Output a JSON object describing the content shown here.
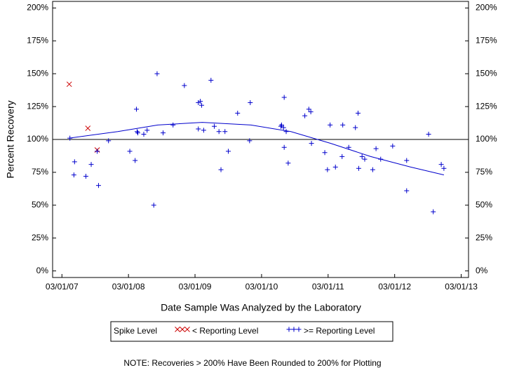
{
  "chart_data": {
    "type": "scatter",
    "xlabel": "Date Sample Was Analyzed by the Laboratory",
    "ylabel": "Percent Recovery",
    "note": "NOTE: Recoveries > 200% Have Been Rounded to 200% for Plotting",
    "legend_title": "Spike Level",
    "xlim": [
      2007.02,
      2013.27
    ],
    "ylim": [
      -5,
      205
    ],
    "xticks": [
      {
        "value": 2007.16,
        "label": "03/01/07"
      },
      {
        "value": 2008.16,
        "label": "03/01/08"
      },
      {
        "value": 2009.16,
        "label": "03/01/09"
      },
      {
        "value": 2010.16,
        "label": "03/01/10"
      },
      {
        "value": 2011.16,
        "label": "03/01/11"
      },
      {
        "value": 2012.16,
        "label": "03/01/12"
      },
      {
        "value": 2013.16,
        "label": "03/01/13"
      }
    ],
    "yticks": [
      {
        "value": 0,
        "label": "0%"
      },
      {
        "value": 25,
        "label": "25%"
      },
      {
        "value": 50,
        "label": "50%"
      },
      {
        "value": 75,
        "label": "75%"
      },
      {
        "value": 100,
        "label": "100%"
      },
      {
        "value": 125,
        "label": "125%"
      },
      {
        "value": 150,
        "label": "150%"
      },
      {
        "value": 175,
        "label": "175%"
      },
      {
        "value": 200,
        "label": "200%"
      }
    ],
    "reference_line": 100,
    "series": [
      {
        "name": "< Reporting Level",
        "color": "#cc0000",
        "marker": "x",
        "x": [
          2007.27,
          2007.55,
          2007.69
        ],
        "values": [
          142,
          108.5,
          92
        ]
      },
      {
        "name": ">= Reporting Level",
        "color": "#0000cc",
        "marker": "+",
        "x": [
          2007.28,
          2007.35,
          2007.34,
          2007.52,
          2007.6,
          2007.69,
          2007.71,
          2007.86,
          2008.18,
          2008.26,
          2008.29,
          2008.28,
          2008.3,
          2008.39,
          2008.44,
          2008.54,
          2008.59,
          2008.68,
          2008.83,
          2009.0,
          2009.21,
          2009.24,
          2009.26,
          2009.21,
          2009.29,
          2009.4,
          2009.45,
          2009.52,
          2009.55,
          2009.61,
          2009.66,
          2009.8,
          2009.99,
          2009.98,
          2010.45,
          2010.46,
          2010.5,
          2010.49,
          2010.53,
          2010.56,
          2010.5,
          2010.81,
          2010.87,
          2010.9,
          2010.91,
          2011.11,
          2011.15,
          2011.19,
          2011.27,
          2011.37,
          2011.38,
          2011.47,
          2011.57,
          2011.61,
          2011.62,
          2011.67,
          2011.71,
          2011.83,
          2011.88,
          2011.95,
          2012.13,
          2012.34,
          2012.34,
          2012.67,
          2012.74,
          2012.86,
          2012.9
        ],
        "values": [
          101,
          83,
          73,
          72,
          81,
          91,
          65,
          99,
          91,
          84,
          106,
          123,
          105,
          104,
          107,
          50,
          150,
          105,
          111,
          141,
          128,
          129,
          126,
          108,
          107,
          145,
          110,
          106,
          77,
          106,
          91,
          120,
          128,
          99,
          110,
          111,
          132,
          109,
          106,
          82,
          94,
          118,
          123,
          121,
          97,
          90,
          77,
          111,
          79,
          87,
          111,
          94,
          109,
          120,
          78,
          87,
          85,
          77,
          93,
          85,
          95,
          84,
          61,
          104,
          45,
          81,
          78
        ]
      }
    ],
    "fit": {
      "color": "#0000cc",
      "x": [
        2007.27,
        2008.0,
        2008.6,
        2009.27,
        2010.0,
        2010.6,
        2011.2,
        2011.8,
        2012.4,
        2012.9
      ],
      "values": [
        101,
        106,
        111,
        113,
        111,
        106,
        97,
        87,
        79,
        73
      ]
    }
  }
}
